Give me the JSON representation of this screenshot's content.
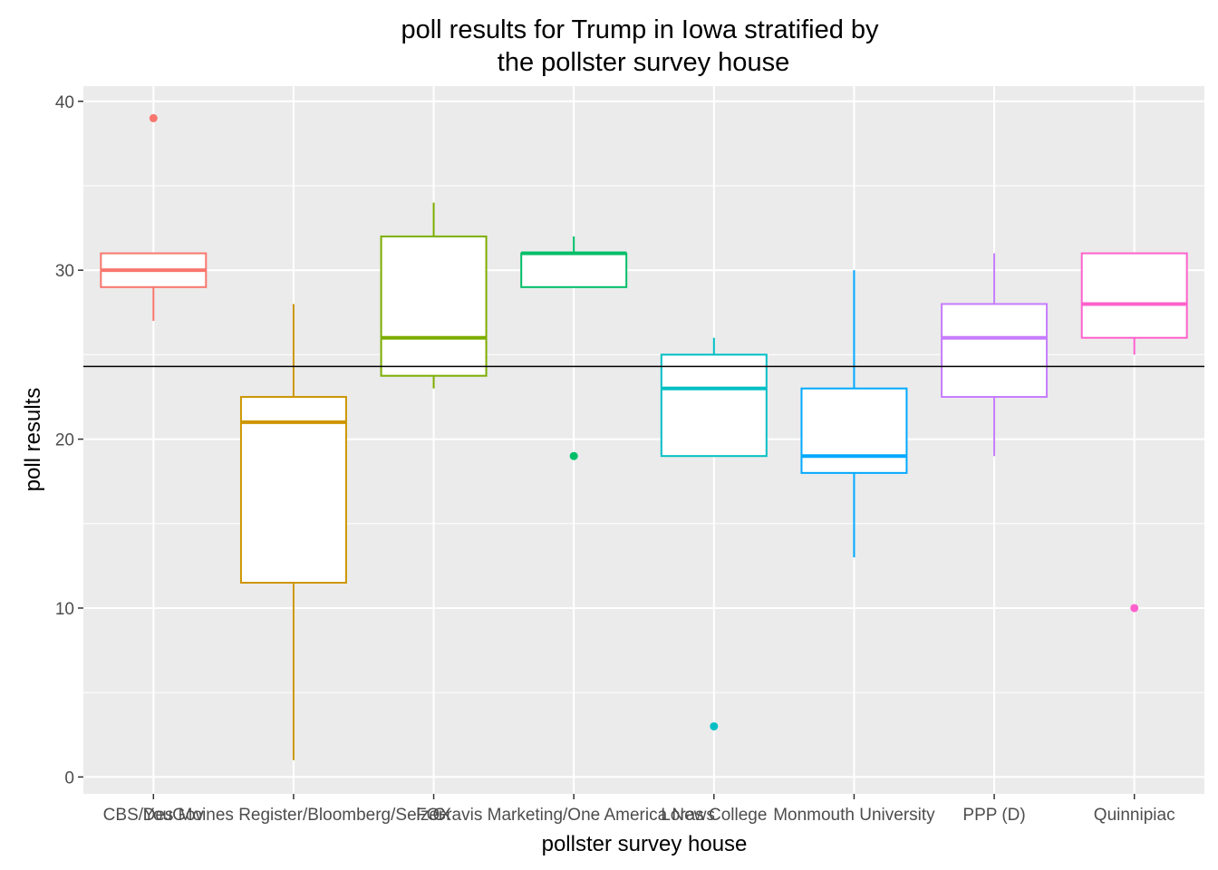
{
  "chart_data": {
    "type": "boxplot",
    "title_lines": [
      "poll results for Trump in Iowa stratified by",
      "the pollster survey house"
    ],
    "xlabel": "pollster survey house",
    "ylabel": "poll results",
    "ylim": [
      -1,
      40.9
    ],
    "yticks": [
      0,
      10,
      20,
      30,
      40
    ],
    "grid": true,
    "legend": "none",
    "reference_line": 24.3,
    "categories": [
      "CBS/YouGov",
      "Des Moines Register/Bloomberg/Selzer",
      "FOX",
      "Gravis Marketing/One America News",
      "Loras College",
      "Monmouth University",
      "PPP (D)",
      "Quinnipiac"
    ],
    "boxes": [
      {
        "category": "CBS/YouGov",
        "lower_whisker": 27,
        "q1": 29,
        "median": 30,
        "q3": 31,
        "upper_whisker": 31,
        "outliers": [
          39
        ],
        "color": "#F8766D"
      },
      {
        "category": "Des Moines Register/Bloomberg/Selzer",
        "lower_whisker": 1,
        "q1": 11.5,
        "median": 21,
        "q3": 22.5,
        "upper_whisker": 28,
        "outliers": [],
        "color": "#CD9600"
      },
      {
        "category": "FOX",
        "lower_whisker": 23,
        "q1": 23.75,
        "median": 26,
        "q3": 32,
        "upper_whisker": 34,
        "outliers": [],
        "color": "#7CAE00"
      },
      {
        "category": "Gravis Marketing/One America News",
        "lower_whisker": 29,
        "q1": 29,
        "median": 31,
        "q3": 31,
        "upper_whisker": 32,
        "outliers": [
          19
        ],
        "color": "#00BE67"
      },
      {
        "category": "Loras College",
        "lower_whisker": 19,
        "q1": 19,
        "median": 23,
        "q3": 25,
        "upper_whisker": 26,
        "outliers": [
          3
        ],
        "color": "#00BFC4"
      },
      {
        "category": "Monmouth University",
        "lower_whisker": 13,
        "q1": 18,
        "median": 19,
        "q3": 23,
        "upper_whisker": 30,
        "outliers": [],
        "color": "#00A9FF"
      },
      {
        "category": "PPP (D)",
        "lower_whisker": 19,
        "q1": 22.5,
        "median": 26,
        "q3": 28,
        "upper_whisker": 31,
        "outliers": [],
        "color": "#C77CFF"
      },
      {
        "category": "Quinnipiac",
        "lower_whisker": 25,
        "q1": 26,
        "median": 28,
        "q3": 31,
        "upper_whisker": 31,
        "outliers": [
          10
        ],
        "color": "#FF61CC"
      }
    ]
  }
}
